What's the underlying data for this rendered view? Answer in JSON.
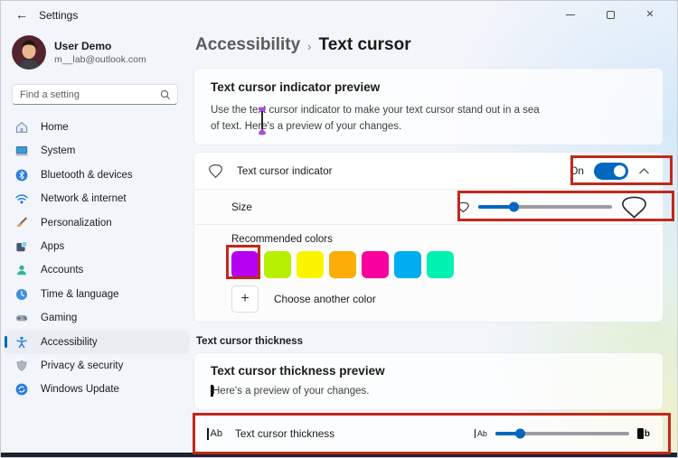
{
  "window": {
    "title": "Settings"
  },
  "profile": {
    "name": "User Demo",
    "email": "m__lab@outlook.com"
  },
  "search": {
    "placeholder": "Find a setting"
  },
  "sidebar": {
    "items": [
      {
        "label": "Home",
        "icon": "home-icon"
      },
      {
        "label": "System",
        "icon": "system-icon"
      },
      {
        "label": "Bluetooth & devices",
        "icon": "bluetooth-icon"
      },
      {
        "label": "Network & internet",
        "icon": "network-icon"
      },
      {
        "label": "Personalization",
        "icon": "personalization-icon"
      },
      {
        "label": "Apps",
        "icon": "apps-icon"
      },
      {
        "label": "Accounts",
        "icon": "accounts-icon"
      },
      {
        "label": "Time & language",
        "icon": "time-language-icon"
      },
      {
        "label": "Gaming",
        "icon": "gaming-icon"
      },
      {
        "label": "Accessibility",
        "icon": "accessibility-icon"
      },
      {
        "label": "Privacy & security",
        "icon": "privacy-icon"
      },
      {
        "label": "Windows Update",
        "icon": "windows-update-icon"
      }
    ],
    "selected_index": 9
  },
  "breadcrumb": {
    "parent": "Accessibility",
    "separator": "›",
    "current": "Text cursor"
  },
  "indicator_preview": {
    "title": "Text cursor indicator preview",
    "line1": "Use the text cursor indicator to make your text cursor stand out in a sea",
    "line2": "of text. Here's a preview of your changes."
  },
  "indicator_row": {
    "label": "Text cursor indicator",
    "state": "On"
  },
  "size_row": {
    "label": "Size",
    "value_percent": 27
  },
  "colors": {
    "label": "Recommended colors",
    "swatches": [
      "#B500F2",
      "#B6F000",
      "#FBF400",
      "#FBAD08",
      "#F7009E",
      "#00AEF0",
      "#00F2AE"
    ],
    "selected_index": 0,
    "plus": "+",
    "add_label": "Choose another color"
  },
  "thickness_section_label": "Text cursor thickness",
  "thickness_preview": {
    "title": "Text cursor thickness preview",
    "text": "Here's a preview of your changes."
  },
  "thickness_row": {
    "label": "Text cursor thickness",
    "value_percent": 19
  },
  "theme": {
    "accent": "#0067C0",
    "annotation_red": "#C3271B",
    "indicator_purple": "#AE4BE0"
  }
}
